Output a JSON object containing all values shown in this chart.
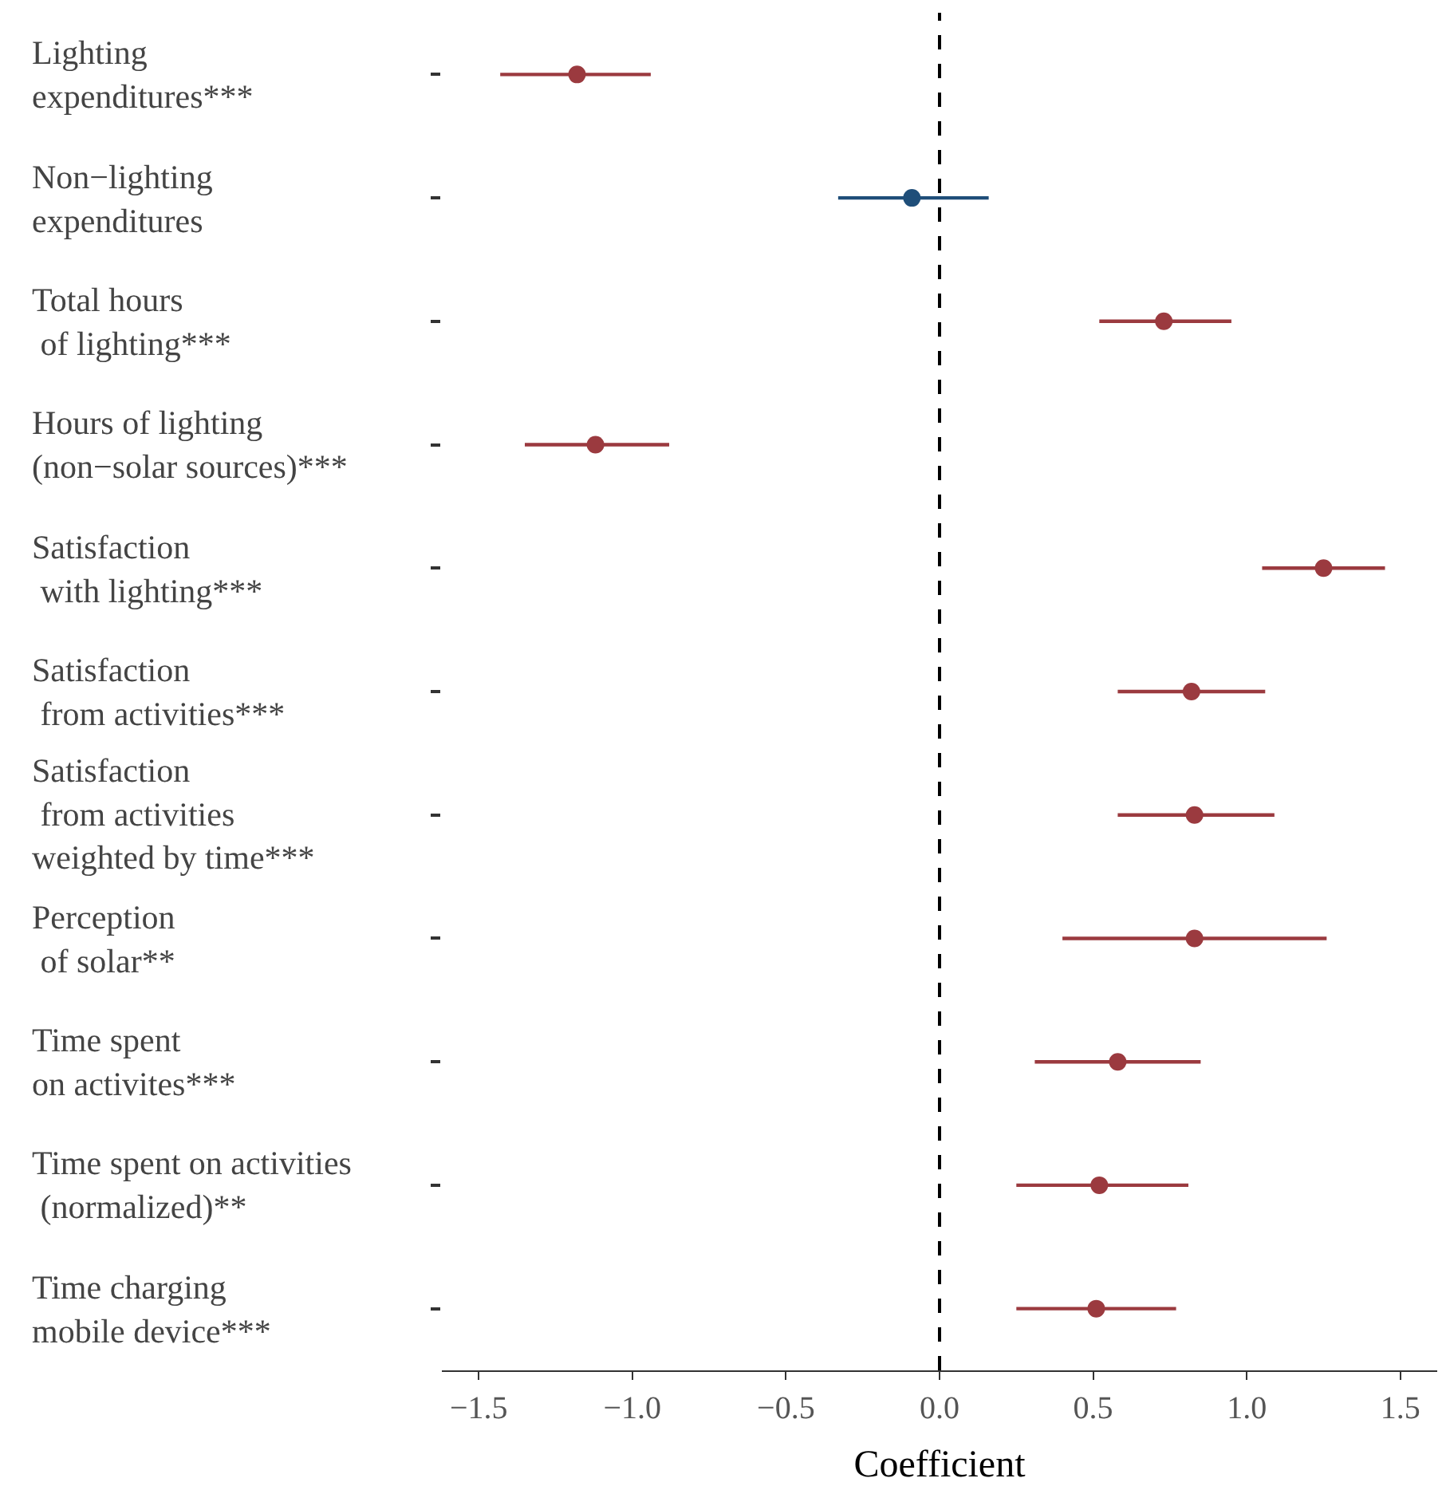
{
  "chart_data": {
    "type": "scatter",
    "orientation": "horizontal",
    "xlabel": "Coefficient",
    "categories": [
      "Lighting\nexpenditures***",
      "Non−lighting\nexpenditures",
      "Total hours\n of lighting***",
      "Hours of lighting\n(non−solar sources)***",
      "Satisfaction\n with lighting***",
      "Satisfaction\n from activities***",
      "Satisfaction\n from activities\nweighted by time***",
      "Perception\n of solar**",
      "Time spent\non activites***",
      "Time spent on activities\n (normalized)**",
      "Time charging\nmobile device***"
    ],
    "values": [
      -1.18,
      -0.09,
      0.73,
      -1.12,
      1.25,
      0.82,
      0.83,
      0.83,
      0.58,
      0.52,
      0.51
    ],
    "errors": [
      [
        -1.43,
        -0.94
      ],
      [
        -0.33,
        0.16
      ],
      [
        0.52,
        0.95
      ],
      [
        -1.35,
        -0.88
      ],
      [
        1.05,
        1.45
      ],
      [
        0.58,
        1.06
      ],
      [
        0.58,
        1.09
      ],
      [
        0.4,
        1.26
      ],
      [
        0.31,
        0.85
      ],
      [
        0.25,
        0.81
      ],
      [
        0.25,
        0.77
      ]
    ],
    "colors": [
      "#9b3a3f",
      "#1f4e79",
      "#9b3a3f",
      "#9b3a3f",
      "#9b3a3f",
      "#9b3a3f",
      "#9b3a3f",
      "#9b3a3f",
      "#9b3a3f",
      "#9b3a3f",
      "#9b3a3f"
    ],
    "xlim": [
      -1.62,
      1.62
    ],
    "xticks": [
      {
        "value": -1.5,
        "label": "−1.5"
      },
      {
        "value": -1.0,
        "label": "−1.0"
      },
      {
        "value": -0.5,
        "label": "−0.5"
      },
      {
        "value": 0.0,
        "label": "0.0"
      },
      {
        "value": 0.5,
        "label": "0.5"
      },
      {
        "value": 1.0,
        "label": "1.0"
      },
      {
        "value": 1.5,
        "label": "1.5"
      }
    ],
    "ref_lines": [
      {
        "axis": "x",
        "value": 0,
        "color": "#000000",
        "line_style": "dashed"
      }
    ],
    "marker": "circle"
  }
}
